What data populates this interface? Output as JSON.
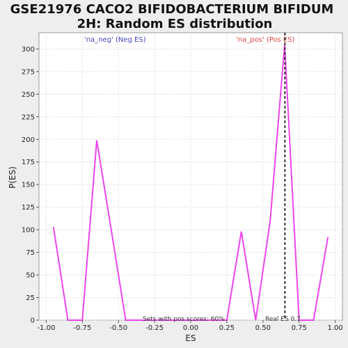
{
  "chart_data": {
    "type": "line",
    "title_line1": "GSE21976 CACO2 BIFIDOBACTERIUM BIFIDUM",
    "title_line2": "2H: Random ES distribution",
    "xlabel": "ES",
    "ylabel": "P(ES)",
    "xlim": [
      -1.05,
      1.05
    ],
    "ylim": [
      0,
      318
    ],
    "x_ticks": [
      -1.0,
      -0.75,
      -0.5,
      -0.25,
      0.0,
      0.25,
      0.5,
      0.75,
      1.0
    ],
    "x_tick_labels": [
      "-1.00",
      "-0.75",
      "-0.50",
      "-0.25",
      "0.00",
      "0.25",
      "0.50",
      "0.75",
      "1.00"
    ],
    "y_ticks": [
      0,
      25,
      50,
      75,
      100,
      125,
      150,
      175,
      200,
      225,
      250,
      275,
      300
    ],
    "y_tick_labels": [
      "0",
      "25",
      "50",
      "75",
      "100",
      "125",
      "150",
      "175",
      "200",
      "225",
      "250",
      "275",
      "300"
    ],
    "grid": true,
    "series": [
      {
        "color": "#ee44ee",
        "x": [
          -0.95,
          -0.85,
          -0.75,
          -0.65,
          -0.55,
          -0.45,
          -0.35,
          -0.25,
          -0.15,
          -0.05,
          0.05,
          0.15,
          0.25,
          0.35,
          0.45,
          0.55,
          0.65,
          0.75,
          0.85,
          0.95
        ],
        "y": [
          103,
          0,
          0,
          199,
          100,
          0,
          0,
          0,
          0,
          0,
          0,
          0,
          0,
          98,
          0,
          110,
          305,
          0,
          0,
          92
        ]
      }
    ],
    "real_es_value": 0.652,
    "annotations": {
      "neg_label": "'na_neg' (Neg ES)",
      "pos_label": "'na_pos' (Pos ES)",
      "sets_label": "Sets with pos scores: 60%",
      "real_es_label": "Real ES 0.7"
    },
    "colors": {
      "background": "#eeeeee",
      "plot_background": "#ffffff",
      "line": "#ee44ee",
      "neg_label": "#4444bb",
      "pos_label": "#dd4444",
      "grid": "#dddddd",
      "real_es_line": "#333333"
    }
  }
}
